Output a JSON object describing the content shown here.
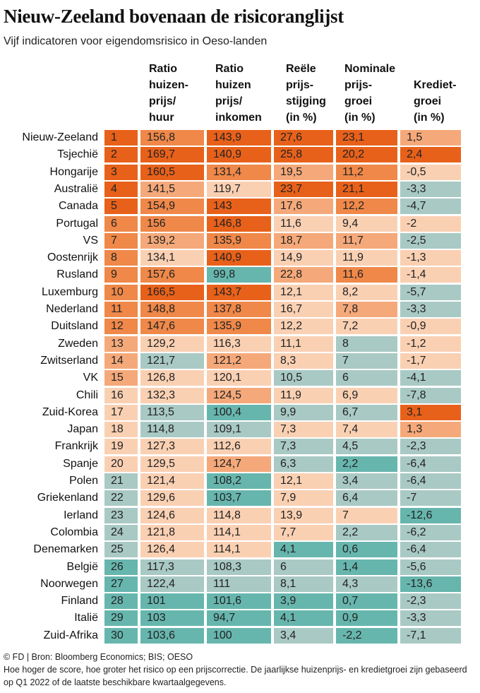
{
  "title": "Nieuw-Zeeland bovenaan de risicoranglijst",
  "subtitle": "Vijf indicatoren voor eigendomsrisico in Oeso-landen",
  "footer": {
    "source": "© FD | Bron: Bloomberg Economics; BIS; OESO",
    "note": "Hoe hoger de score, hoe groter het risico op een prijscorrectie. De jaarlijkse huizenprijs- en kredietgroei zijn gebaseerd op Q1 2022 of de laatste beschikbare kwartaalgegevens."
  },
  "colors": {
    "dark_orange": "#e8611a",
    "orange": "#ef8849",
    "light_orange": "#f5a97a",
    "peach": "#fad0b3",
    "gray_teal": "#a9c9c4",
    "teal": "#67b6ae"
  },
  "chart_data": {
    "type": "table",
    "columns": [
      {
        "key": "rank",
        "label": ""
      },
      {
        "key": "ratio_huur",
        "label": "Ratio\nhuizen-\nprijs/\nhuur"
      },
      {
        "key": "ratio_inkomen",
        "label": "Ratio\nhuizen\nprijs/\ninkomen"
      },
      {
        "key": "reele",
        "label": "Reële\nprijs-\nstijging\n(in %)"
      },
      {
        "key": "nominale",
        "label": "Nominale\nprijs-\ngroei\n(in %)"
      },
      {
        "key": "krediet",
        "label": "Krediet-\ngroei\n(in %)"
      }
    ],
    "rows": [
      {
        "country": "Nieuw-Zeeland",
        "values": [
          "1",
          "156,8",
          "143,9",
          "27,6",
          "23,1",
          "1,5"
        ],
        "colors": [
          "dark_orange",
          "orange",
          "dark_orange",
          "dark_orange",
          "dark_orange",
          "light_orange"
        ]
      },
      {
        "country": "Tsjechië",
        "values": [
          "2",
          "169,7",
          "140,9",
          "25,8",
          "20,2",
          "2,4"
        ],
        "colors": [
          "dark_orange",
          "dark_orange",
          "dark_orange",
          "dark_orange",
          "dark_orange",
          "dark_orange"
        ]
      },
      {
        "country": "Hongarije",
        "values": [
          "3",
          "160,5",
          "131,4",
          "19,5",
          "11,2",
          "-0,5"
        ],
        "colors": [
          "dark_orange",
          "dark_orange",
          "orange",
          "light_orange",
          "orange",
          "peach"
        ]
      },
      {
        "country": "Australië",
        "values": [
          "4",
          "141,5",
          "119,7",
          "23,7",
          "21,1",
          "-3,3"
        ],
        "colors": [
          "dark_orange",
          "light_orange",
          "peach",
          "dark_orange",
          "dark_orange",
          "gray_teal"
        ]
      },
      {
        "country": "Canada",
        "values": [
          "5",
          "154,9",
          "143",
          "17,6",
          "12,2",
          "-4,7"
        ],
        "colors": [
          "dark_orange",
          "orange",
          "dark_orange",
          "light_orange",
          "orange",
          "gray_teal"
        ]
      },
      {
        "country": "Portugal",
        "values": [
          "6",
          "156",
          "146,8",
          "11,6",
          "9,4",
          "-2"
        ],
        "colors": [
          "orange",
          "orange",
          "dark_orange",
          "peach",
          "peach",
          "peach"
        ]
      },
      {
        "country": "VS",
        "values": [
          "7",
          "139,2",
          "135,9",
          "18,7",
          "11,7",
          "-2,5"
        ],
        "colors": [
          "orange",
          "light_orange",
          "orange",
          "light_orange",
          "light_orange",
          "gray_teal"
        ]
      },
      {
        "country": "Oostenrijk",
        "values": [
          "8",
          "134,1",
          "140,9",
          "14,9",
          "11,9",
          "-1,3"
        ],
        "colors": [
          "orange",
          "peach",
          "dark_orange",
          "peach",
          "peach",
          "peach"
        ]
      },
      {
        "country": "Rusland",
        "values": [
          "9",
          "157,6",
          "99,8",
          "22,8",
          "11,6",
          "-1,4"
        ],
        "colors": [
          "orange",
          "orange",
          "teal",
          "light_orange",
          "orange",
          "peach"
        ]
      },
      {
        "country": "Luxemburg",
        "values": [
          "10",
          "166,5",
          "143,7",
          "12,1",
          "8,2",
          "-5,7"
        ],
        "colors": [
          "orange",
          "dark_orange",
          "dark_orange",
          "peach",
          "peach",
          "gray_teal"
        ]
      },
      {
        "country": "Nederland",
        "values": [
          "11",
          "148,8",
          "137,8",
          "16,7",
          "7,8",
          "-3,3"
        ],
        "colors": [
          "orange",
          "orange",
          "orange",
          "peach",
          "light_orange",
          "gray_teal"
        ]
      },
      {
        "country": "Duitsland",
        "values": [
          "12",
          "147,6",
          "135,9",
          "12,2",
          "7,2",
          "-0,9"
        ],
        "colors": [
          "orange",
          "orange",
          "orange",
          "peach",
          "peach",
          "peach"
        ]
      },
      {
        "country": "Zweden",
        "values": [
          "13",
          "129,2",
          "116,3",
          "11,1",
          "8",
          "-1,2"
        ],
        "colors": [
          "light_orange",
          "peach",
          "peach",
          "peach",
          "gray_teal",
          "peach"
        ]
      },
      {
        "country": "Zwitserland",
        "values": [
          "14",
          "121,7",
          "121,2",
          "8,3",
          "7",
          "-1,7"
        ],
        "colors": [
          "light_orange",
          "gray_teal",
          "light_orange",
          "peach",
          "gray_teal",
          "peach"
        ]
      },
      {
        "country": "VK",
        "values": [
          "15",
          "126,8",
          "120,1",
          "10,5",
          "6",
          "-4,1"
        ],
        "colors": [
          "light_orange",
          "peach",
          "peach",
          "gray_teal",
          "gray_teal",
          "gray_teal"
        ]
      },
      {
        "country": "Chili",
        "values": [
          "16",
          "132,3",
          "124,5",
          "11,9",
          "6,9",
          "-7,8"
        ],
        "colors": [
          "peach",
          "peach",
          "light_orange",
          "peach",
          "peach",
          "gray_teal"
        ]
      },
      {
        "country": "Zuid-Korea",
        "values": [
          "17",
          "113,5",
          "100,4",
          "9,9",
          "6,7",
          "3,1"
        ],
        "colors": [
          "peach",
          "gray_teal",
          "teal",
          "gray_teal",
          "gray_teal",
          "dark_orange"
        ]
      },
      {
        "country": "Japan",
        "values": [
          "18",
          "114,8",
          "109,1",
          "7,3",
          "7,4",
          "1,3"
        ],
        "colors": [
          "peach",
          "gray_teal",
          "gray_teal",
          "peach",
          "peach",
          "light_orange"
        ]
      },
      {
        "country": "Frankrijk",
        "values": [
          "19",
          "127,3",
          "112,6",
          "7,3",
          "4,5",
          "-2,3"
        ],
        "colors": [
          "peach",
          "peach",
          "peach",
          "gray_teal",
          "gray_teal",
          "gray_teal"
        ]
      },
      {
        "country": "Spanje",
        "values": [
          "20",
          "129,5",
          "124,7",
          "6,3",
          "2,2",
          "-6,4"
        ],
        "colors": [
          "peach",
          "peach",
          "light_orange",
          "gray_teal",
          "teal",
          "gray_teal"
        ]
      },
      {
        "country": "Polen",
        "values": [
          "21",
          "121,4",
          "108,2",
          "12,1",
          "3,4",
          "-6,4"
        ],
        "colors": [
          "gray_teal",
          "peach",
          "teal",
          "peach",
          "gray_teal",
          "gray_teal"
        ]
      },
      {
        "country": "Griekenland",
        "values": [
          "22",
          "129,6",
          "103,7",
          "7,9",
          "6,4",
          "-7"
        ],
        "colors": [
          "gray_teal",
          "peach",
          "teal",
          "peach",
          "gray_teal",
          "gray_teal"
        ]
      },
      {
        "country": "Ierland",
        "values": [
          "23",
          "124,6",
          "114,8",
          "13,9",
          "7",
          "-12,6"
        ],
        "colors": [
          "gray_teal",
          "peach",
          "peach",
          "peach",
          "peach",
          "teal"
        ]
      },
      {
        "country": "Colombia",
        "values": [
          "24",
          "121,8",
          "114,1",
          "7,7",
          "2,2",
          "-6,2"
        ],
        "colors": [
          "gray_teal",
          "peach",
          "peach",
          "peach",
          "gray_teal",
          "gray_teal"
        ]
      },
      {
        "country": "Denemarken",
        "values": [
          "25",
          "126,4",
          "114,1",
          "4,1",
          "0,6",
          "-6,4"
        ],
        "colors": [
          "gray_teal",
          "peach",
          "peach",
          "teal",
          "teal",
          "gray_teal"
        ]
      },
      {
        "country": "België",
        "values": [
          "26",
          "117,3",
          "108,3",
          "6",
          "1,4",
          "-5,6"
        ],
        "colors": [
          "teal",
          "gray_teal",
          "gray_teal",
          "gray_teal",
          "teal",
          "gray_teal"
        ]
      },
      {
        "country": "Noorwegen",
        "values": [
          "27",
          "122,4",
          "111",
          "8,1",
          "4,3",
          "-13,6"
        ],
        "colors": [
          "teal",
          "gray_teal",
          "gray_teal",
          "gray_teal",
          "gray_teal",
          "teal"
        ]
      },
      {
        "country": "Finland",
        "values": [
          "28",
          "101",
          "101,6",
          "3,9",
          "0,7",
          "-2,3"
        ],
        "colors": [
          "teal",
          "teal",
          "teal",
          "teal",
          "teal",
          "gray_teal"
        ]
      },
      {
        "country": "Italië",
        "values": [
          "29",
          "103",
          "94,7",
          "4,1",
          "0,9",
          "-3,3"
        ],
        "colors": [
          "teal",
          "teal",
          "teal",
          "teal",
          "teal",
          "gray_teal"
        ]
      },
      {
        "country": "Zuid-Afrika",
        "values": [
          "30",
          "103,6",
          "100",
          "3,4",
          "-2,2",
          "-7,1"
        ],
        "colors": [
          "teal",
          "teal",
          "teal",
          "gray_teal",
          "teal",
          "gray_teal"
        ]
      }
    ]
  }
}
